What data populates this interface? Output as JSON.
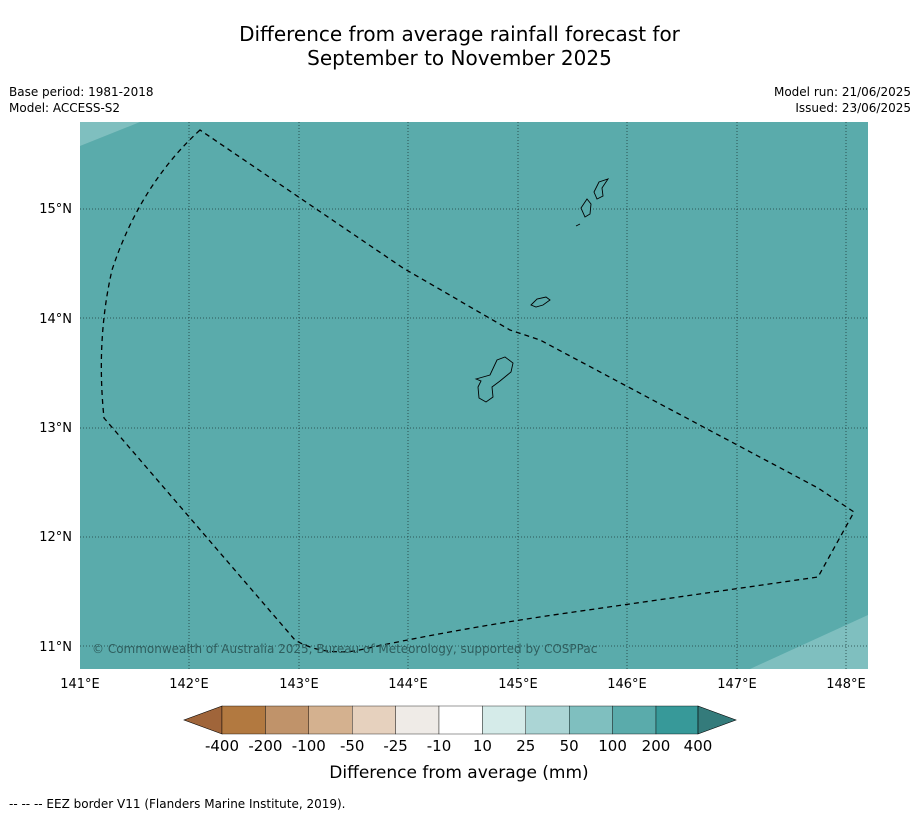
{
  "title": {
    "line1": "Difference from average rainfall forecast for",
    "line2": "September to November 2025"
  },
  "meta_left": {
    "base_period": "Base period: 1981-2018",
    "model": "Model: ACCESS-S2"
  },
  "meta_right": {
    "model_run": "Model run: 21/06/2025",
    "issued": "Issued: 23/06/2025"
  },
  "map": {
    "lat_labels": [
      "15°N",
      "14°N",
      "13°N",
      "12°N",
      "11°N"
    ],
    "lon_labels": [
      "141°E",
      "142°E",
      "143°E",
      "144°E",
      "145°E",
      "146°E",
      "147°E",
      "148°E"
    ],
    "copyright": "© Commonwealth of Australia 2025, Bureau of Meteorology, supported by COSPPac",
    "background_category": "100 to 200",
    "colors": {
      "fill_100_200": "#5aabab",
      "fill_50_100": "#7fbfbf"
    }
  },
  "colorbar": {
    "tick_labels": [
      "-400",
      "-200",
      "-100",
      "-50",
      "-25",
      "-10",
      "10",
      "25",
      "50",
      "100",
      "200",
      "400"
    ],
    "bin_colors": [
      "#a0653a",
      "#b27940",
      "#c0936a",
      "#d4b18f",
      "#e6d1be",
      "#efebe7",
      "#ffffff",
      "#d5ebe9",
      "#abd5d5",
      "#7fbfbf",
      "#5aabab",
      "#379999",
      "#347b7b"
    ],
    "title": "Difference from average (mm)"
  },
  "footer": {
    "legend_line": "--  --  -- EEZ border V11 (Flanders Marine Institute, 2019)."
  }
}
